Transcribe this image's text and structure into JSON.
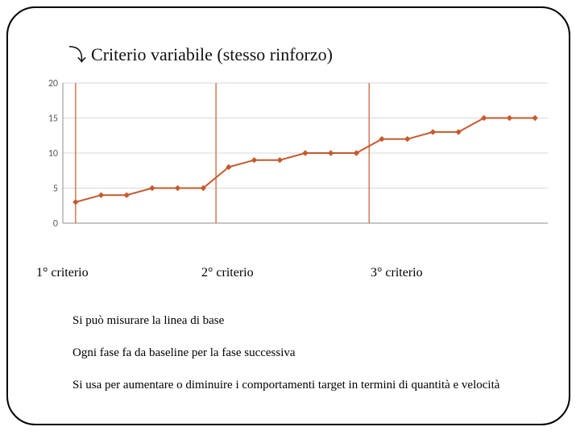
{
  "title": {
    "bullet_glyph": "⤵",
    "text": "Criterio variabile (stesso rinforzo)"
  },
  "chart": {
    "type": "line",
    "background_color": "#ffffff",
    "plot_bg_color": "#ffffff",
    "grid_color": "#d9d9d9",
    "axis_color": "#8c8c8c",
    "axis_label_color": "#595959",
    "axis_label_fontsize": 12,
    "series_color": "#c55a2d",
    "marker_style": "diamond",
    "marker_size": 6,
    "line_width": 2,
    "vertical_ref_lines": {
      "color": "#c55a2d",
      "width": 1.2,
      "x_positions": [
        1,
        6.5,
        12.5
      ]
    },
    "x": [
      1,
      2,
      3,
      4,
      5,
      6,
      7,
      8,
      9,
      10,
      11,
      12,
      13,
      14,
      15,
      16,
      17,
      18,
      19
    ],
    "y": [
      3,
      4,
      4,
      5,
      5,
      5,
      8,
      9,
      9,
      10,
      10,
      10,
      12,
      12,
      13,
      13,
      15,
      15,
      15
    ],
    "xlim": [
      0.5,
      19.5
    ],
    "ylim": [
      0,
      20
    ],
    "ytick_step": 5,
    "yticks": [
      0,
      5,
      10,
      15,
      20
    ],
    "xticks_shown": false
  },
  "criteria_labels": {
    "c1": "1° criterio",
    "c2": "2° criterio",
    "c3": "3° criterio"
  },
  "body": {
    "line1": "Si può misurare la linea di base",
    "line2": "Ogni fase fa da baseline per la fase successiva",
    "line3": "Si usa per aumentare o diminuire i comportamenti target in termini di quantità e velocità"
  }
}
